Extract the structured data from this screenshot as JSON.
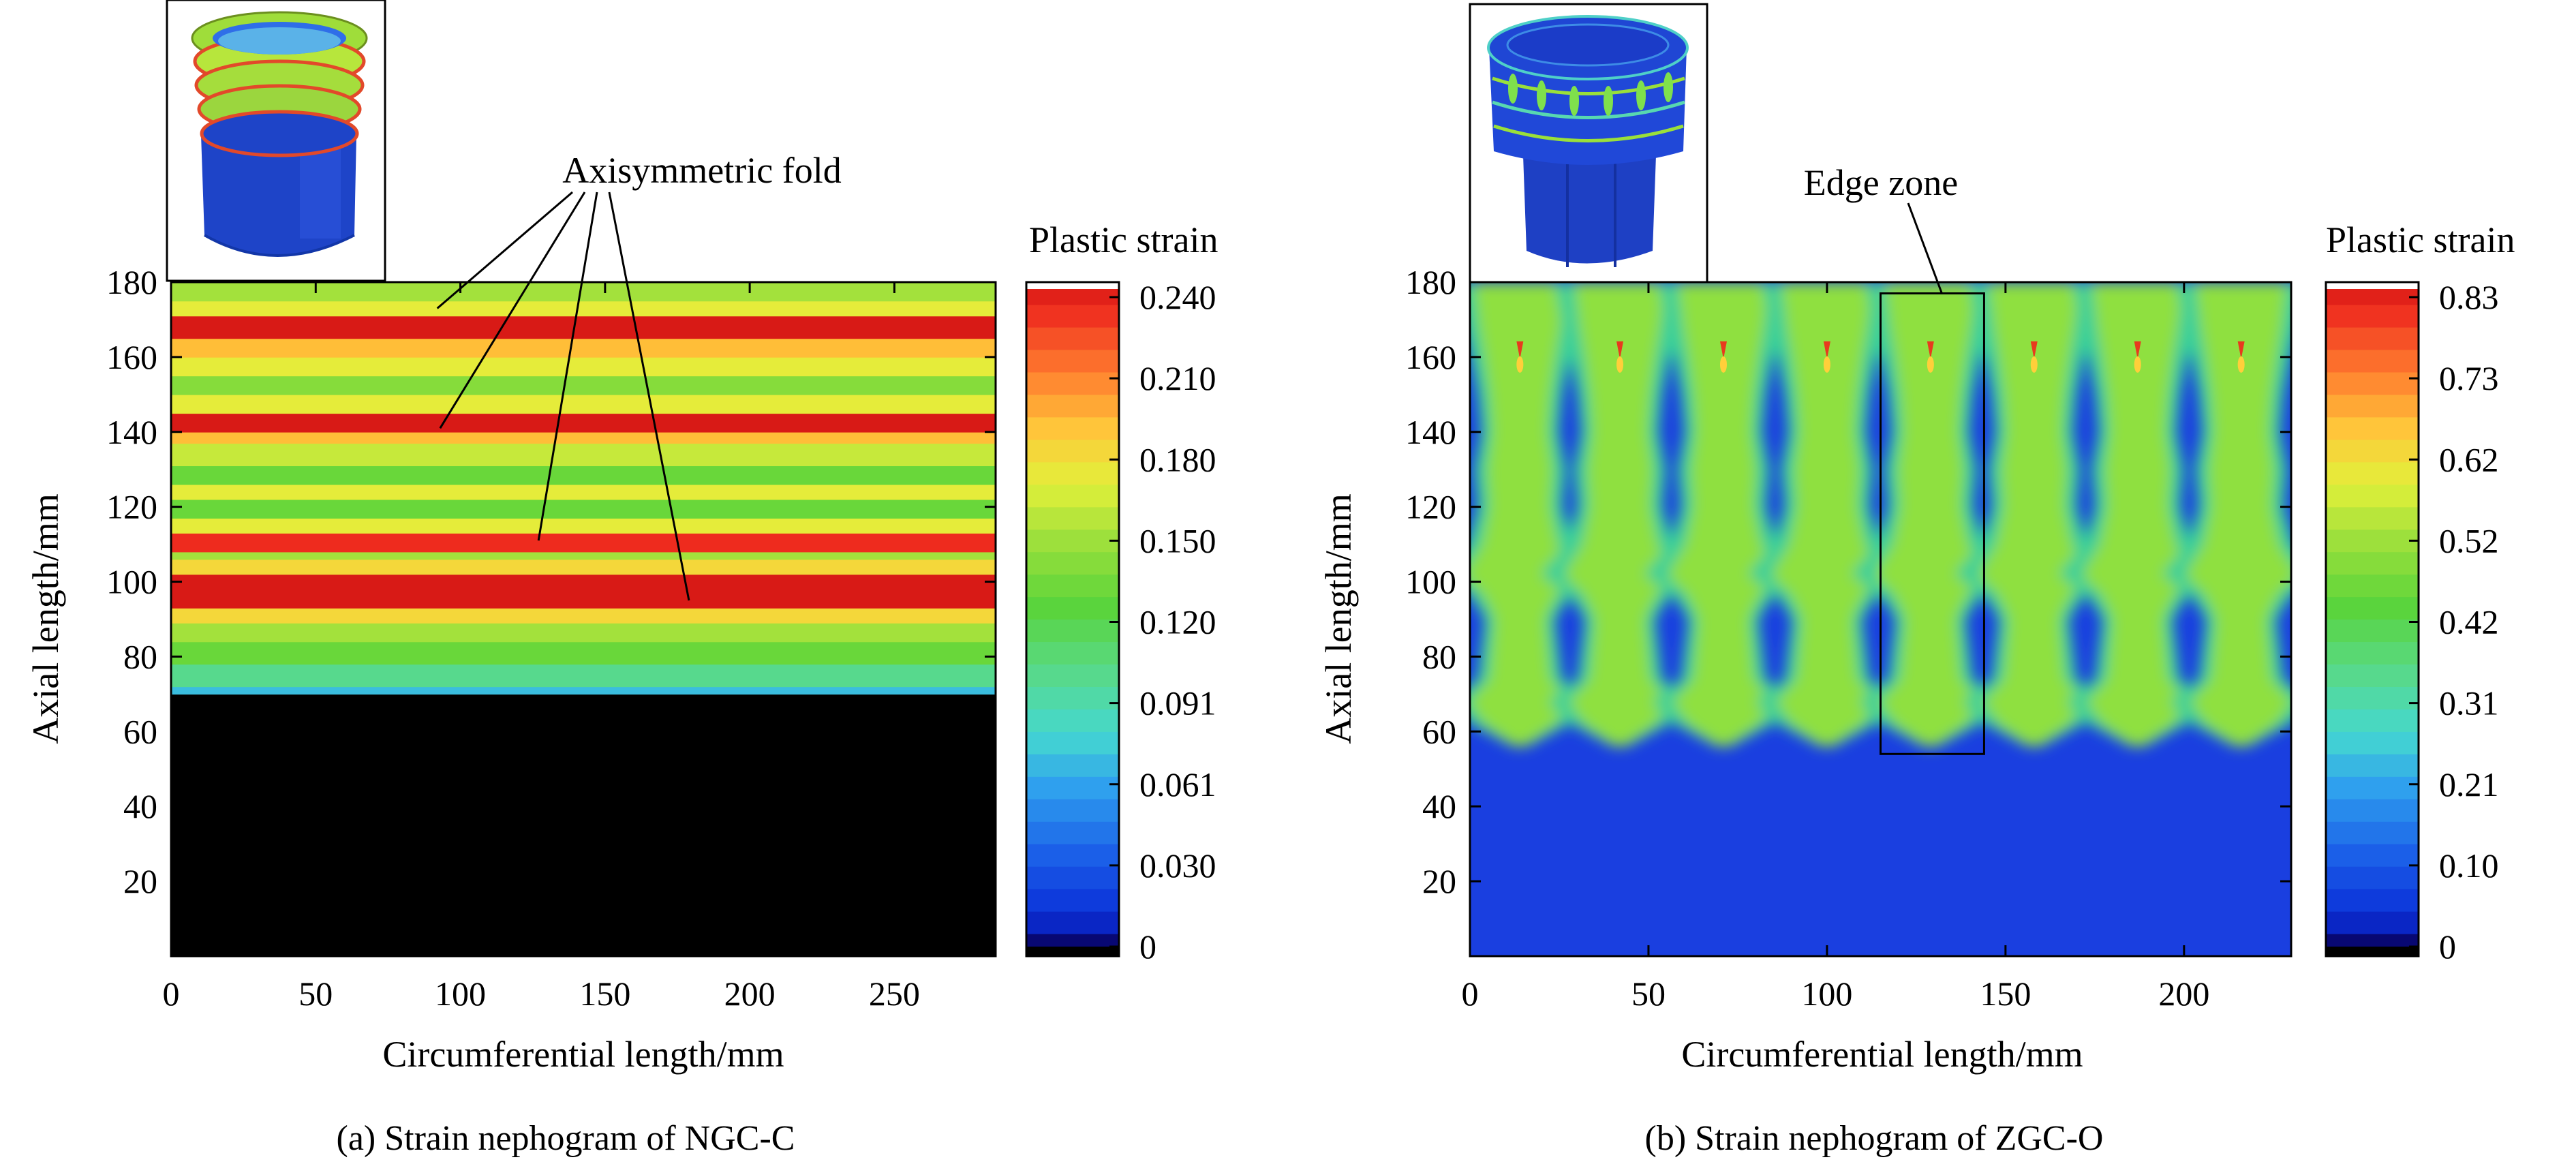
{
  "chart_data": [
    {
      "type": "heatmap",
      "caption": "(a) Strain nephogram of NGC-C",
      "xlabel": "Circumferential length/mm",
      "ylabel": "Axial length/mm",
      "xlim": [
        0,
        285
      ],
      "ylim": [
        0,
        180
      ],
      "xticks": [
        "0",
        "50",
        "100",
        "150",
        "200",
        "250"
      ],
      "yticks": [
        "20",
        "40",
        "60",
        "80",
        "100",
        "120",
        "140",
        "160",
        "180"
      ],
      "colorbar": {
        "title": "Plastic strain",
        "ticks": [
          "0",
          "0.030",
          "0.061",
          "0.091",
          "0.120",
          "0.150",
          "0.180",
          "0.210",
          "0.240"
        ],
        "max": 0.24
      },
      "pattern": "axisymmetric horizontal bands",
      "bands": [
        {
          "y": [
            0,
            70
          ],
          "strain": 0.0
        },
        {
          "y": [
            70,
            72
          ],
          "strain": 0.07
        },
        {
          "y": [
            72,
            78
          ],
          "strain": 0.1
        },
        {
          "y": [
            78,
            84
          ],
          "strain": 0.13
        },
        {
          "y": [
            84,
            89
          ],
          "strain": 0.15
        },
        {
          "y": [
            89,
            93
          ],
          "strain": 0.18
        },
        {
          "y": [
            93,
            102
          ],
          "strain": 0.24
        },
        {
          "y": [
            102,
            106
          ],
          "strain": 0.18
        },
        {
          "y": [
            106,
            108
          ],
          "strain": 0.15
        },
        {
          "y": [
            108,
            113
          ],
          "strain": 0.23
        },
        {
          "y": [
            113,
            117
          ],
          "strain": 0.17
        },
        {
          "y": [
            117,
            122
          ],
          "strain": 0.13
        },
        {
          "y": [
            122,
            126
          ],
          "strain": 0.17
        },
        {
          "y": [
            126,
            131
          ],
          "strain": 0.13
        },
        {
          "y": [
            131,
            137
          ],
          "strain": 0.16
        },
        {
          "y": [
            137,
            140
          ],
          "strain": 0.19
        },
        {
          "y": [
            140,
            145
          ],
          "strain": 0.24
        },
        {
          "y": [
            145,
            150
          ],
          "strain": 0.17
        },
        {
          "y": [
            150,
            155
          ],
          "strain": 0.14
        },
        {
          "y": [
            155,
            160
          ],
          "strain": 0.17
        },
        {
          "y": [
            160,
            165
          ],
          "strain": 0.19
        },
        {
          "y": [
            165,
            171
          ],
          "strain": 0.24
        },
        {
          "y": [
            171,
            175
          ],
          "strain": 0.17
        },
        {
          "y": [
            175,
            180
          ],
          "strain": 0.15
        }
      ],
      "annotation": "Axisymmetric fold",
      "annotation_targets": [
        [
          92,
          173
        ],
        [
          93,
          141
        ],
        [
          127,
          111
        ],
        [
          179,
          95
        ]
      ]
    },
    {
      "type": "heatmap",
      "caption": "(b) Strain nephogram of ZGC-O",
      "xlabel": "Circumferential length/mm",
      "ylabel": "Axial length/mm",
      "xlim": [
        0,
        230
      ],
      "ylim": [
        0,
        180
      ],
      "xticks": [
        "0",
        "50",
        "100",
        "150",
        "200"
      ],
      "yticks": [
        "20",
        "40",
        "60",
        "80",
        "100",
        "120",
        "140",
        "160",
        "180"
      ],
      "colorbar": {
        "title": "Plastic strain",
        "ticks": [
          "0",
          "0.10",
          "0.21",
          "0.31",
          "0.42",
          "0.52",
          "0.62",
          "0.73",
          "0.83"
        ],
        "max": 0.83
      },
      "pattern": "periodic vertical lobes",
      "lobe_centers_x": [
        14,
        42,
        71,
        100,
        129,
        158,
        187,
        216
      ],
      "lobe_y_range": [
        55,
        180
      ],
      "background_strain": 0.02,
      "lobe_strain": 0.45,
      "peak_strain": 0.83,
      "peak_y": 162,
      "annotation": "Edge zone",
      "box_x": [
        115,
        144
      ],
      "box_y": [
        54,
        177
      ]
    }
  ]
}
